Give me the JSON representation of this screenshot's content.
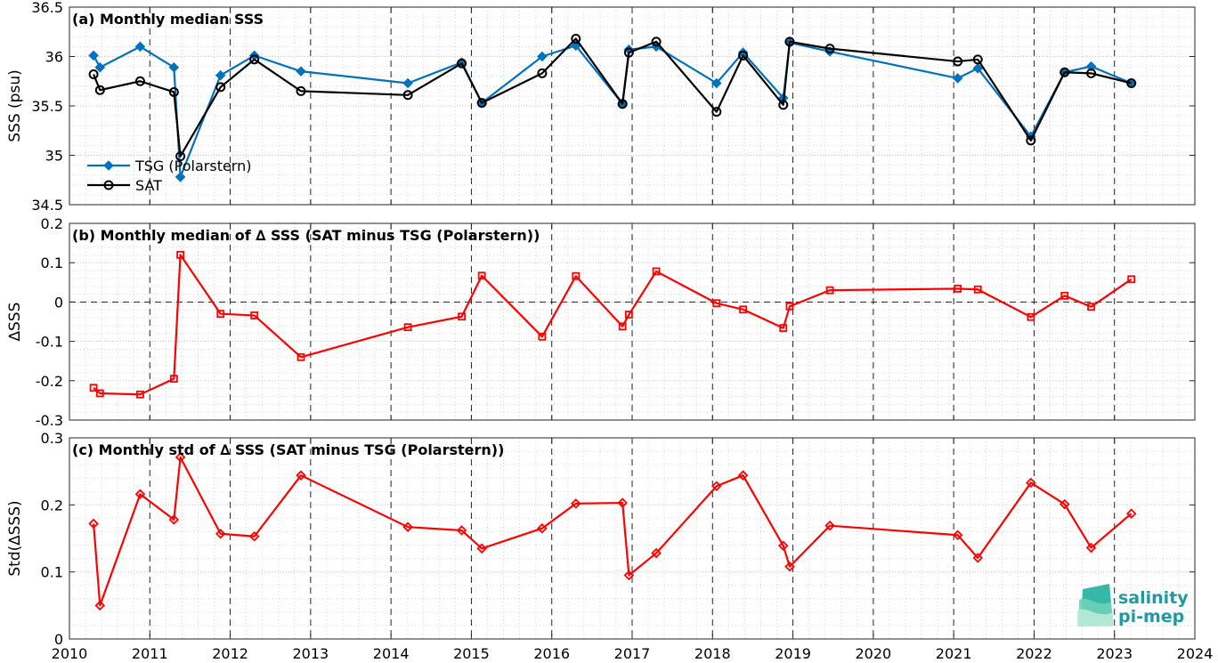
{
  "logo": {
    "line1": "salinity",
    "line2": "pi-mep"
  },
  "x_axis": {
    "range": [
      2010,
      2024
    ],
    "ticks": [
      2010,
      2011,
      2012,
      2013,
      2014,
      2015,
      2016,
      2017,
      2018,
      2019,
      2020,
      2021,
      2022,
      2023,
      2024
    ],
    "tick_labels": [
      "2010",
      "2011",
      "2012",
      "2013",
      "2014",
      "2015",
      "2016",
      "2017",
      "2018",
      "2019",
      "2020",
      "2021",
      "2022",
      "2023",
      "2024"
    ],
    "dashed_year_lines": true
  },
  "chart_data": [
    {
      "type": "line",
      "title": "(a) Monthly median SSS",
      "ylabel": "SSS (psu)",
      "ylim": [
        34.5,
        36.5
      ],
      "yticks": [
        34.5,
        35,
        35.5,
        36,
        36.5
      ],
      "ytick_labels": [
        "34.5",
        "35",
        "35.5",
        "36",
        "36.5"
      ],
      "grid": true,
      "legend_position": "bottom-left",
      "series": [
        {
          "name": "TSG (Polarstern)",
          "color": "#0072bd",
          "marker": "diamond",
          "x": [
            2010.3,
            2010.38,
            2010.88,
            2011.3,
            2011.38,
            2011.88,
            2012.3,
            2012.88,
            2014.21,
            2014.88,
            2015.13,
            2015.88,
            2016.3,
            2016.88,
            2016.96,
            2017.3,
            2018.05,
            2018.38,
            2018.88,
            2018.96,
            2019.46,
            2021.05,
            2021.3,
            2021.96,
            2022.38,
            2022.71,
            2023.21
          ],
          "y": [
            36.01,
            35.89,
            36.1,
            35.89,
            34.78,
            35.81,
            36.01,
            35.85,
            35.73,
            35.94,
            35.53,
            36.0,
            36.11,
            35.52,
            36.07,
            36.1,
            35.73,
            36.04,
            35.58,
            36.14,
            36.05,
            35.78,
            35.88,
            35.19,
            35.84,
            35.9,
            35.73
          ]
        },
        {
          "name": "SAT",
          "color": "#000000",
          "marker": "circle",
          "x": [
            2010.3,
            2010.38,
            2010.88,
            2011.3,
            2011.38,
            2011.88,
            2012.3,
            2012.88,
            2014.21,
            2014.88,
            2015.13,
            2015.88,
            2016.3,
            2016.88,
            2016.96,
            2017.3,
            2018.05,
            2018.38,
            2018.88,
            2018.96,
            2019.46,
            2021.05,
            2021.3,
            2021.96,
            2022.38,
            2022.71,
            2023.21
          ],
          "y": [
            35.82,
            35.66,
            35.75,
            35.64,
            34.99,
            35.69,
            35.97,
            35.65,
            35.61,
            35.93,
            35.53,
            35.83,
            36.18,
            35.52,
            36.04,
            36.15,
            35.44,
            36.01,
            35.51,
            36.15,
            36.08,
            35.95,
            35.97,
            35.15,
            35.84,
            35.83,
            35.73
          ]
        }
      ]
    },
    {
      "type": "line",
      "title": "(b) Monthly median of ∆ SSS (SAT minus TSG (Polarstern))",
      "ylabel": "∆SSS",
      "ylim": [
        -0.3,
        0.2
      ],
      "yticks": [
        -0.3,
        -0.2,
        -0.1,
        0,
        0.1,
        0.2
      ],
      "ytick_labels": [
        "-0.3",
        "-0.2",
        "-0.1",
        "0",
        "0.1",
        "0.2"
      ],
      "grid": true,
      "zero_line": true,
      "series": [
        {
          "color": "#ff0000",
          "marker": "square",
          "x": [
            2010.3,
            2010.38,
            2010.88,
            2011.3,
            2011.38,
            2011.88,
            2012.3,
            2012.88,
            2014.21,
            2014.88,
            2015.13,
            2015.88,
            2016.3,
            2016.88,
            2016.96,
            2017.3,
            2018.05,
            2018.38,
            2018.88,
            2018.96,
            2019.46,
            2021.05,
            2021.3,
            2021.96,
            2022.38,
            2022.71,
            2023.21
          ],
          "y": [
            -0.218,
            -0.232,
            -0.235,
            -0.195,
            0.12,
            -0.03,
            -0.034,
            -0.14,
            -0.064,
            -0.037,
            0.067,
            -0.088,
            0.066,
            -0.062,
            -0.032,
            0.078,
            -0.003,
            -0.019,
            -0.066,
            -0.011,
            0.03,
            0.034,
            0.032,
            -0.038,
            0.016,
            -0.012,
            0.058
          ]
        }
      ]
    },
    {
      "type": "line",
      "title": "(c) Monthly std of ∆ SSS (SAT minus TSG (Polarstern))",
      "ylabel": "Std(∆SSS)",
      "ylim": [
        0,
        0.3
      ],
      "yticks": [
        0,
        0.1,
        0.2,
        0.3
      ],
      "ytick_labels": [
        "0",
        "0.1",
        "0.2",
        "0.3"
      ],
      "grid": true,
      "series": [
        {
          "color": "#ff0000",
          "marker": "diamond",
          "x": [
            2010.3,
            2010.38,
            2010.88,
            2011.3,
            2011.38,
            2011.88,
            2012.3,
            2012.88,
            2014.21,
            2014.88,
            2015.13,
            2015.88,
            2016.3,
            2016.88,
            2016.96,
            2017.3,
            2018.05,
            2018.38,
            2018.88,
            2018.96,
            2019.46,
            2021.05,
            2021.3,
            2021.96,
            2022.38,
            2022.71,
            2023.21
          ],
          "y": [
            0.172,
            0.05,
            0.216,
            0.178,
            0.271,
            0.157,
            0.153,
            0.244,
            0.167,
            0.162,
            0.135,
            0.165,
            0.202,
            0.203,
            0.095,
            0.128,
            0.228,
            0.244,
            0.139,
            0.108,
            0.169,
            0.155,
            0.121,
            0.233,
            0.201,
            0.136,
            0.187
          ]
        }
      ]
    }
  ]
}
